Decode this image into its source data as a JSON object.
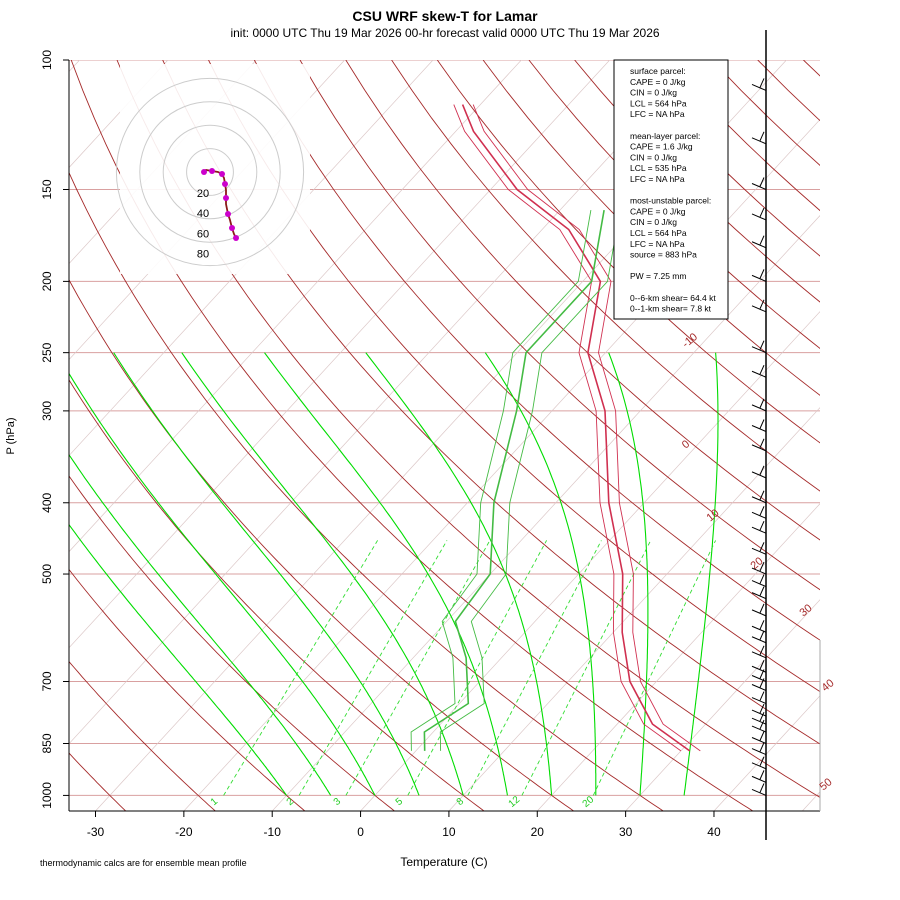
{
  "title": "CSU WRF skew-T for Lamar",
  "subtitle": "init: 0000 UTC Thu 19 Mar 2026     00-hr forecast valid 0000 UTC Thu 19 Mar 2026",
  "footnote": "thermodynamic calcs are for ensemble mean profile",
  "colors": {
    "isotherm": "#a52a2a",
    "isobar": "#d9a0a0",
    "dry_adiabat": "#a52a2a",
    "moist_adiabat": "#00dd00",
    "mixing_ratio": "#33dd33",
    "temperature": "#d03050",
    "dewpoint": "#44bb44",
    "hodograph": "#cc00cc",
    "wind_barb": "#000000"
  },
  "stats_box": {
    "lines": [
      "surface parcel:",
      "CAPE = 0 J/kg",
      "CIN = 0 J/kg",
      "LCL = 564 hPa",
      "LFC = NA hPa",
      "",
      "mean-layer parcel:",
      "CAPE = 1.6 J/kg",
      "CIN = 0 J/kg",
      "LCL = 535 hPa",
      "LFC = NA hPa",
      "",
      "most-unstable parcel:",
      "CAPE = 0 J/kg",
      "CIN = 0 J/kg",
      "LCL = 564 hPa",
      "LFC = NA hPa",
      "source = 883 hPa",
      "",
      "PW =  7.25 mm",
      "",
      "0--6-km shear= 64.4 kt",
      "0--1-km shear= 7.8 kt"
    ]
  },
  "hodograph": {
    "ring_labels": [
      "20",
      "40",
      "60",
      "80"
    ],
    "rings_kt": [
      20,
      40,
      60,
      80
    ]
  },
  "chart_data": {
    "type": "line",
    "title": "CSU WRF skew-T for Lamar",
    "xlabel": "Temperature (C)",
    "ylabel": "P (hPa)",
    "xlim": [
      -33,
      52
    ],
    "ylim": [
      1050,
      100
    ],
    "x_ticks": [
      "-30",
      "-20",
      "-10",
      "0",
      "10",
      "20",
      "30",
      "40"
    ],
    "x_tick_values": [
      -30,
      -20,
      -10,
      0,
      10,
      20,
      30,
      40
    ],
    "y_ticks": [
      "100",
      "150",
      "200",
      "250",
      "300",
      "400",
      "500",
      "700",
      "850",
      "1000"
    ],
    "y_tick_values": [
      100,
      150,
      200,
      250,
      300,
      400,
      500,
      700,
      850,
      1000
    ],
    "isotherm_labels": [
      "-10",
      "0",
      "10",
      "20",
      "30",
      "40",
      "50"
    ],
    "mixing_ratio_labels": [
      "1",
      "2",
      "3",
      "5",
      "8",
      "12",
      "20"
    ],
    "series": [
      {
        "name": "Temperature",
        "points": [
          [
            31,
            870
          ],
          [
            24,
            800
          ],
          [
            17,
            700
          ],
          [
            11,
            600
          ],
          [
            5,
            500
          ],
          [
            -4,
            400
          ],
          [
            -14,
            300
          ],
          [
            -22,
            250
          ],
          [
            -28,
            200
          ],
          [
            -37,
            170
          ],
          [
            -47,
            150
          ],
          [
            -58,
            125
          ],
          [
            -62,
            115
          ]
        ]
      },
      {
        "name": "Dewpoint",
        "points": [
          [
            1,
            870
          ],
          [
            -1,
            820
          ],
          [
            1,
            750
          ],
          [
            -4,
            650
          ],
          [
            -9,
            580
          ],
          [
            -10,
            500
          ],
          [
            -17,
            400
          ],
          [
            -24,
            300
          ],
          [
            -29,
            250
          ],
          [
            -29,
            200
          ],
          [
            -35,
            160
          ]
        ]
      }
    ],
    "wind_levels_hpa": [
      1000,
      960,
      920,
      880,
      850,
      820,
      800,
      780,
      750,
      720,
      700,
      680,
      650,
      620,
      600,
      570,
      540,
      520,
      500,
      470,
      440,
      420,
      400,
      370,
      340,
      320,
      300,
      270,
      250,
      220,
      200,
      180,
      165,
      150,
      130,
      110
    ]
  }
}
